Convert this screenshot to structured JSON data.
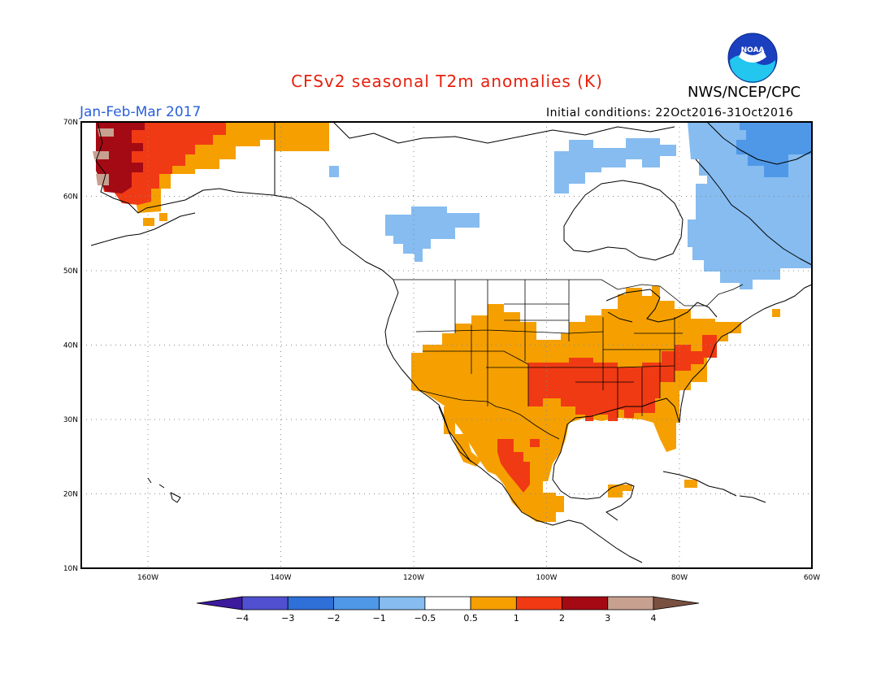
{
  "title": "CFSv2 seasonal T2m anomalies (K)",
  "agency": "NWS/NCEP/CPC",
  "logo_text": "NOAA",
  "period": "Jan-Feb-Mar 2017",
  "initial_conditions": "Initial conditions: 22Oct2016-31Oct2016",
  "map": {
    "lat_ticks": [
      "70N",
      "60N",
      "50N",
      "40N",
      "30N",
      "20N",
      "10N"
    ],
    "lon_ticks": [
      "160W",
      "140W",
      "120W",
      "100W",
      "80W",
      "60W"
    ],
    "grid": "dotted"
  },
  "colorbar": {
    "labels": [
      "-4",
      "-3",
      "-2",
      "-1",
      "-0.5",
      "0.5",
      "1",
      "2",
      "3",
      "4"
    ],
    "colors": [
      "#3c1a9e",
      "#5050d0",
      "#2e6fd8",
      "#4f98e8",
      "#86bcf0",
      "#ffffff",
      "#f5a000",
      "#f03a14",
      "#a40a14",
      "#c8a090",
      "#7a5040"
    ]
  },
  "anomaly_colors": {
    "cold_light": "#86bcf0",
    "cold_mid": "#4f98e8",
    "warm_light": "#f5a000",
    "warm_mid": "#f03a14",
    "warm_strong": "#a40a14",
    "warm_extreme": "#c8a090"
  }
}
